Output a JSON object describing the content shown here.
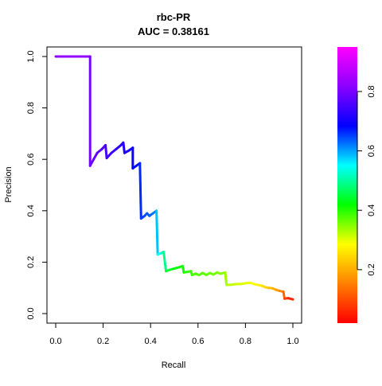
{
  "chart_data": {
    "type": "line",
    "title_line1": "rbc-PR",
    "title_line2": "AUC = 0.38161",
    "xlabel": "Recall",
    "ylabel": "Precision",
    "xlim": [
      0,
      1
    ],
    "ylim": [
      0,
      1
    ],
    "x_ticks": [
      "0.0",
      "0.2",
      "0.4",
      "0.6",
      "0.8",
      "1.0"
    ],
    "y_ticks": [
      "0.0",
      "0.2",
      "0.4",
      "0.6",
      "0.8",
      "1.0"
    ],
    "curve": {
      "coloring": "rainbow gradient by threshold (red = low, magenta = high)",
      "points": [
        [
          0.0,
          1.0,
          0.95
        ],
        [
          0.14,
          1.0,
          0.94
        ],
        [
          0.145,
          1.0,
          0.93
        ],
        [
          0.145,
          0.575,
          0.92
        ],
        [
          0.16,
          0.6,
          0.91
        ],
        [
          0.175,
          0.625,
          0.91
        ],
        [
          0.195,
          0.64,
          0.9
        ],
        [
          0.21,
          0.655,
          0.89
        ],
        [
          0.215,
          0.605,
          0.88
        ],
        [
          0.235,
          0.625,
          0.88
        ],
        [
          0.255,
          0.64,
          0.87
        ],
        [
          0.275,
          0.655,
          0.86
        ],
        [
          0.285,
          0.665,
          0.86
        ],
        [
          0.29,
          0.625,
          0.85
        ],
        [
          0.31,
          0.635,
          0.85
        ],
        [
          0.325,
          0.645,
          0.84
        ],
        [
          0.325,
          0.565,
          0.83
        ],
        [
          0.34,
          0.575,
          0.82
        ],
        [
          0.355,
          0.585,
          0.81
        ],
        [
          0.36,
          0.37,
          0.78
        ],
        [
          0.375,
          0.38,
          0.77
        ],
        [
          0.385,
          0.39,
          0.76
        ],
        [
          0.395,
          0.38,
          0.75
        ],
        [
          0.41,
          0.39,
          0.74
        ],
        [
          0.425,
          0.4,
          0.72
        ],
        [
          0.43,
          0.23,
          0.62
        ],
        [
          0.445,
          0.235,
          0.6
        ],
        [
          0.455,
          0.24,
          0.58
        ],
        [
          0.465,
          0.165,
          0.47
        ],
        [
          0.48,
          0.17,
          0.45
        ],
        [
          0.5,
          0.175,
          0.43
        ],
        [
          0.52,
          0.18,
          0.41
        ],
        [
          0.535,
          0.185,
          0.4
        ],
        [
          0.54,
          0.16,
          0.39
        ],
        [
          0.555,
          0.162,
          0.38
        ],
        [
          0.57,
          0.165,
          0.37
        ],
        [
          0.575,
          0.15,
          0.36
        ],
        [
          0.59,
          0.155,
          0.35
        ],
        [
          0.605,
          0.15,
          0.35
        ],
        [
          0.62,
          0.158,
          0.34
        ],
        [
          0.635,
          0.15,
          0.34
        ],
        [
          0.65,
          0.158,
          0.33
        ],
        [
          0.665,
          0.152,
          0.32
        ],
        [
          0.68,
          0.16,
          0.32
        ],
        [
          0.695,
          0.155,
          0.31
        ],
        [
          0.715,
          0.16,
          0.3
        ],
        [
          0.72,
          0.112,
          0.27
        ],
        [
          0.74,
          0.112,
          0.26
        ],
        [
          0.76,
          0.115,
          0.25
        ],
        [
          0.78,
          0.115,
          0.24
        ],
        [
          0.8,
          0.118,
          0.23
        ],
        [
          0.82,
          0.12,
          0.22
        ],
        [
          0.835,
          0.115,
          0.21
        ],
        [
          0.85,
          0.112,
          0.2
        ],
        [
          0.87,
          0.108,
          0.19
        ],
        [
          0.885,
          0.102,
          0.17
        ],
        [
          0.9,
          0.1,
          0.16
        ],
        [
          0.915,
          0.098,
          0.15
        ],
        [
          0.93,
          0.092,
          0.13
        ],
        [
          0.945,
          0.088,
          0.12
        ],
        [
          0.96,
          0.085,
          0.1
        ],
        [
          0.965,
          0.058,
          0.06
        ],
        [
          0.98,
          0.06,
          0.04
        ],
        [
          1.0,
          0.055,
          0.02
        ]
      ]
    },
    "colorbar": {
      "ticks": [
        "0.2",
        "0.4",
        "0.6",
        "0.8"
      ],
      "range": [
        0.02,
        0.95
      ],
      "colors": [
        "#ff0000",
        "#ff7f00",
        "#ffff00",
        "#00ff00",
        "#00ffff",
        "#0000ff",
        "#8b00ff",
        "#ff00ff"
      ]
    }
  }
}
